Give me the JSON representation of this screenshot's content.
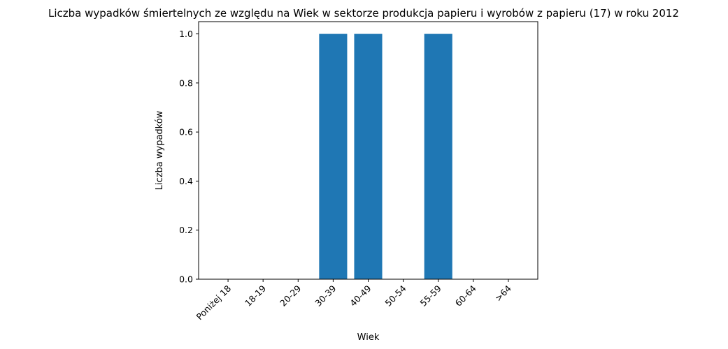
{
  "chart_data": {
    "type": "bar",
    "title": "Liczba wypadków śmiertelnych ze względu na Wiek w sektorze produkcja papieru i wyrobów z papieru  (17)   w roku 2012",
    "xlabel": "Wiek",
    "ylabel": "Liczba wypadków",
    "categories": [
      "Poniżej 18",
      "18-19",
      "20-29",
      "30-39",
      "40-49",
      "50-54",
      "55-59",
      "60-64",
      ">64"
    ],
    "values": [
      0,
      0,
      0,
      1,
      1,
      0,
      1,
      0,
      0
    ],
    "ylim": [
      0,
      1.05
    ],
    "yticks": [
      "0.0",
      "0.2",
      "0.4",
      "0.6",
      "0.8",
      "1.0"
    ],
    "grid": false,
    "bar_color": "#1f77b4"
  }
}
